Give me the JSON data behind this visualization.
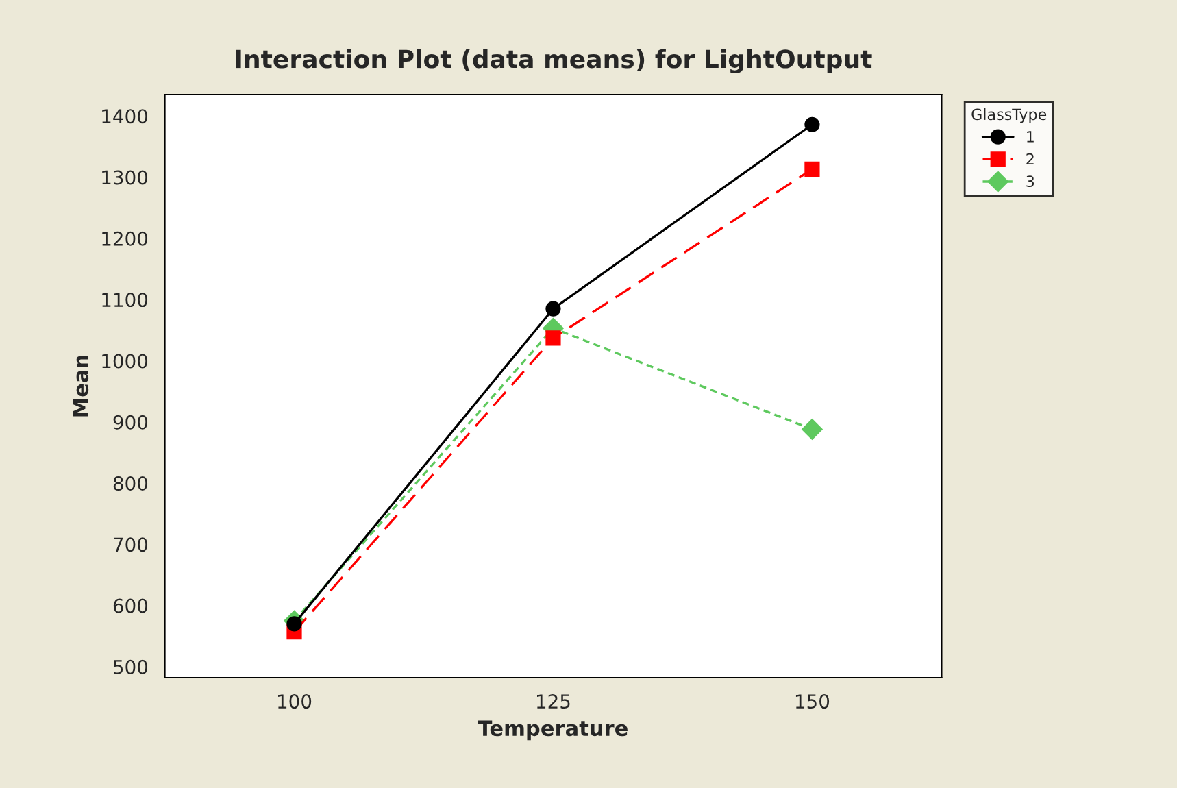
{
  "chart_data": {
    "type": "line",
    "title": "Interaction Plot (data means) for LightOutput",
    "xlabel": "Temperature",
    "ylabel": "Mean",
    "legend_title": "GlassType",
    "x": [
      100,
      125,
      150
    ],
    "xlim": [
      87.5,
      162.5
    ],
    "xticks": [
      100,
      125,
      150
    ],
    "ylim": [
      482,
      1435
    ],
    "yticks": [
      500,
      600,
      700,
      800,
      900,
      1000,
      1100,
      1200,
      1300,
      1400
    ],
    "grid": false,
    "legend": "right",
    "series": [
      {
        "name": "1",
        "color": "#000000",
        "values": [
          570,
          1085,
          1386
        ],
        "marker": "circle",
        "line_style": "solid"
      },
      {
        "name": "2",
        "color": "#ff0000",
        "values": [
          557,
          1037,
          1313
        ],
        "marker": "square",
        "line_style": "dashed"
      },
      {
        "name": "3",
        "color": "#5ec95e",
        "values": [
          575,
          1053,
          888
        ],
        "marker": "diamond",
        "line_style": "dotted"
      }
    ]
  }
}
